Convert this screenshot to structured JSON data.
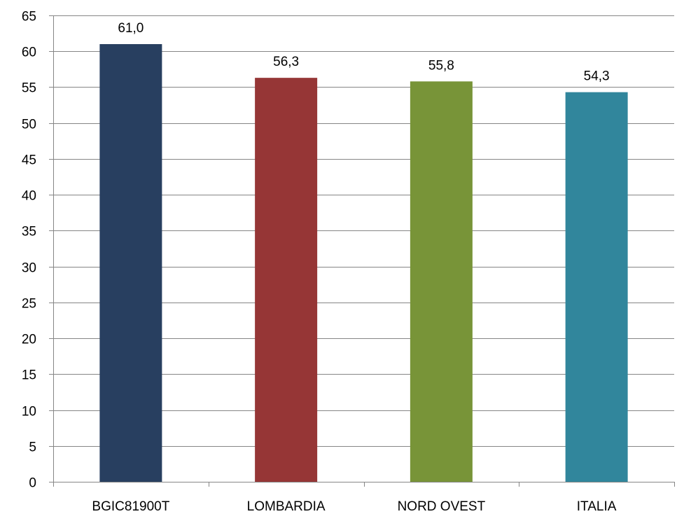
{
  "chart_data": {
    "type": "bar",
    "categories": [
      "BGIC81900T",
      "LOMBARDIA",
      "NORD OVEST",
      "ITALIA"
    ],
    "values": [
      61.0,
      56.3,
      55.8,
      54.3
    ],
    "value_labels": [
      "61,0",
      "56,3",
      "55,8",
      "54,3"
    ],
    "colors": [
      "#283F60",
      "#963636",
      "#789438",
      "#31869C"
    ],
    "title": "",
    "xlabel": "",
    "ylabel": "",
    "ylim": [
      0,
      65
    ],
    "yticks": [
      0,
      5,
      10,
      15,
      20,
      25,
      30,
      35,
      40,
      45,
      50,
      55,
      60,
      65
    ],
    "grid": true,
    "legend": "none"
  }
}
